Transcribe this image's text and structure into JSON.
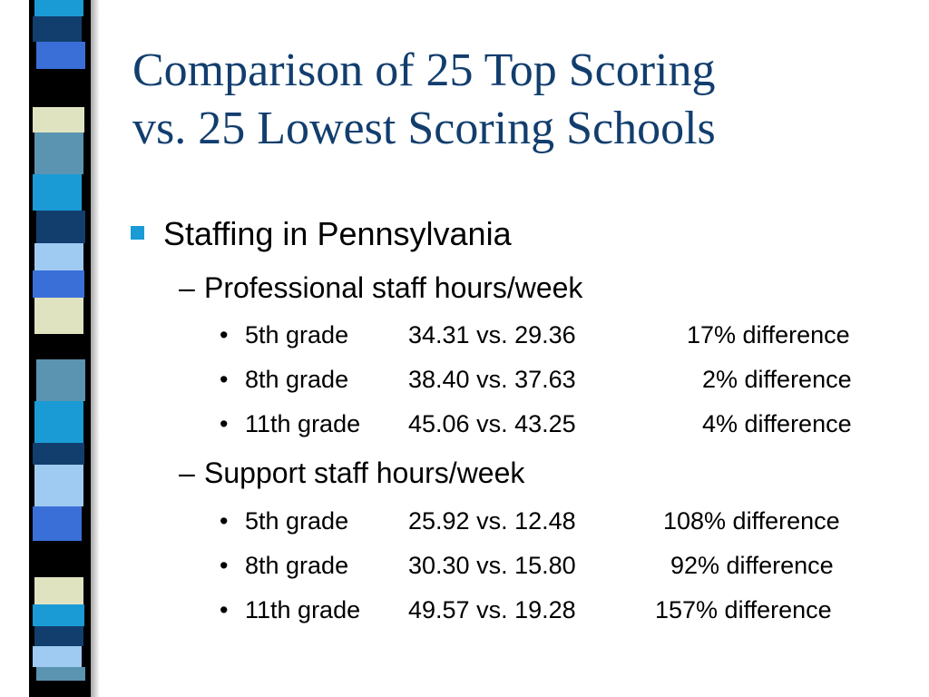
{
  "slide": {
    "title_lines": [
      "Comparison of 25 Top Scoring",
      "vs. 25 Lowest Scoring Schools"
    ],
    "bullet": "Staffing in Pennsylvania",
    "sections": [
      {
        "heading": "Professional staff hours/week",
        "rows": [
          {
            "grade": "5th grade",
            "comparison": "34.31  vs. 29.36",
            "difference": "17% difference"
          },
          {
            "grade": "8th grade",
            "comparison": "38.40  vs. 37.63",
            "difference": "2% difference"
          },
          {
            "grade": "11th grade",
            "comparison": "45.06 vs. 43.25",
            "difference": "4% difference"
          }
        ]
      },
      {
        "heading": "Support staff hours/week",
        "rows": [
          {
            "grade": "5th grade",
            "comparison": "25.92 vs. 12.48",
            "difference": "108% difference"
          },
          {
            "grade": "8th grade",
            "comparison": "30.30 vs. 15.80",
            "difference": "92% difference"
          },
          {
            "grade": "11th grade",
            "comparison": "49.57 vs. 19.28",
            "difference": "157% difference"
          }
        ]
      }
    ],
    "colors": {
      "title": "#123e6e",
      "bullet": "#1a9bd6",
      "stripe_palette": [
        "#000000",
        "#123e6e",
        "#3a6fd8",
        "#1a9bd6",
        "#5a94b0",
        "#9fcbf2",
        "#e0e3c0"
      ]
    }
  }
}
